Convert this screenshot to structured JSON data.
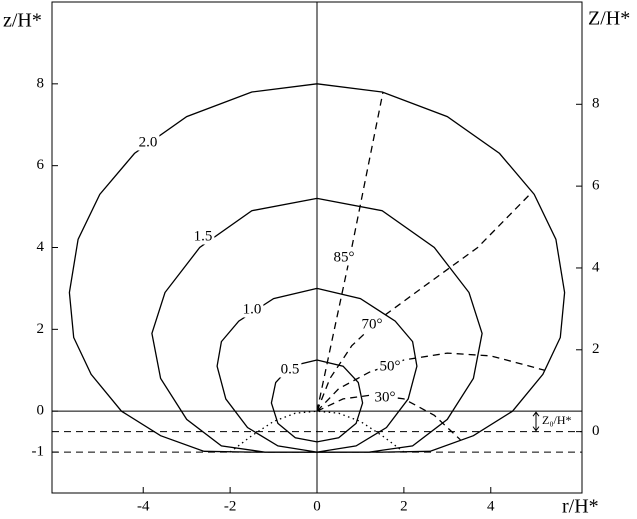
{
  "chart_data": {
    "type": "line",
    "xlabel": "r/H*",
    "ylabel": "z/H*",
    "y2label": "Z/H*",
    "xlim": [
      -6.1,
      6.1
    ],
    "ylim": [
      -2,
      10
    ],
    "y2lim": [
      -1.5,
      10.5
    ],
    "xticks": [
      -4,
      -2,
      0,
      2,
      4
    ],
    "yticks": [
      -1,
      0,
      2,
      4,
      6,
      8
    ],
    "y2ticks": [
      0,
      2,
      4,
      6,
      8
    ],
    "color": "#000000",
    "hlines": [
      {
        "value": 0,
        "style": "solid"
      },
      {
        "value": -0.5,
        "style": "dashed"
      },
      {
        "value": -1,
        "style": "dashed"
      }
    ],
    "vline": 0,
    "annotation": {
      "text": "Z₀/H*",
      "from": 0,
      "to": -0.5
    },
    "series": [
      {
        "name": "2.0",
        "style": "solid",
        "x": [
          0,
          1.5,
          3.0,
          4.2,
          5.0,
          5.5,
          5.7,
          5.6,
          5.2,
          4.5,
          3.6,
          2.6,
          1.5,
          0,
          -1.5,
          -2.6,
          -3.6,
          -4.5,
          -5.2,
          -5.6,
          -5.7,
          -5.5,
          -5.0,
          -4.2,
          -3.0,
          -1.5,
          0
        ],
        "y": [
          8,
          7.8,
          7.2,
          6.3,
          5.3,
          4.2,
          2.9,
          1.8,
          0.9,
          0.0,
          -0.6,
          -0.98,
          -1.0,
          -1.0,
          -1.0,
          -0.98,
          -0.6,
          0.0,
          0.9,
          1.8,
          2.9,
          4.2,
          5.3,
          6.3,
          7.2,
          7.8,
          8
        ]
      },
      {
        "name": "1.5",
        "style": "solid",
        "x": [
          0,
          1.5,
          2.7,
          3.5,
          3.8,
          3.6,
          3.0,
          2.2,
          1.2,
          0,
          -1.2,
          -2.2,
          -3.0,
          -3.6,
          -3.8,
          -3.5,
          -2.7,
          -1.5,
          0
        ],
        "y": [
          5.2,
          4.9,
          4.0,
          2.9,
          1.9,
          0.8,
          -0.2,
          -0.85,
          -1.0,
          -1.0,
          -1.0,
          -0.85,
          -0.2,
          0.8,
          1.9,
          2.9,
          4.0,
          4.9,
          5.2
        ]
      },
      {
        "name": "1.0",
        "style": "solid",
        "x": [
          0,
          1.0,
          1.8,
          2.2,
          2.3,
          2.1,
          1.6,
          0.9,
          0,
          -0.9,
          -1.6,
          -2.1,
          -2.3,
          -2.2,
          -1.8,
          -1.0,
          0
        ],
        "y": [
          3,
          2.75,
          2.2,
          1.7,
          1.1,
          0.3,
          -0.4,
          -0.85,
          -1.0,
          -0.85,
          -0.4,
          0.3,
          1.1,
          1.7,
          2.2,
          2.75,
          3
        ]
      },
      {
        "name": "0.5",
        "style": "solid",
        "x": [
          0,
          0.6,
          0.95,
          1.05,
          0.9,
          0.5,
          0,
          -0.5,
          -0.9,
          -1.05,
          -0.95,
          -0.6,
          0
        ],
        "y": [
          1.25,
          1.1,
          0.7,
          0.2,
          -0.3,
          -0.65,
          -0.75,
          -0.65,
          -0.3,
          0.2,
          0.7,
          1.1,
          1.25
        ]
      },
      {
        "name": "85°",
        "style": "dashed",
        "x": [
          0,
          0.3,
          0.8,
          1.52
        ],
        "y": [
          0,
          1.5,
          4.0,
          7.8
        ]
      },
      {
        "name": "70°",
        "style": "dashed",
        "x": [
          0,
          0.3,
          0.8,
          1.5,
          2.4,
          3.7,
          4.9
        ],
        "y": [
          0,
          0.8,
          1.6,
          2.3,
          3.0,
          4.0,
          5.3
        ]
      },
      {
        "name": "50°",
        "style": "dashed",
        "x": [
          0,
          0.5,
          1.2,
          2,
          3,
          4,
          4.9,
          5.24
        ],
        "y": [
          0,
          0.55,
          0.95,
          1.25,
          1.42,
          1.35,
          1.1,
          1.0
        ]
      },
      {
        "name": "30°",
        "style": "dashed",
        "x": [
          0,
          0.6,
          1.3,
          2,
          2.7,
          3.3
        ],
        "y": [
          0,
          0.3,
          0.4,
          0.3,
          -0.1,
          -0.7
        ]
      },
      {
        "style": "dotted",
        "x": [
          -2,
          -1.5,
          -1,
          -0.5,
          0,
          0.5,
          1,
          1.5,
          2
        ],
        "y": [
          -1,
          -0.6,
          -0.25,
          -0.05,
          0,
          -0.05,
          -0.25,
          -0.6,
          -1
        ]
      }
    ]
  }
}
